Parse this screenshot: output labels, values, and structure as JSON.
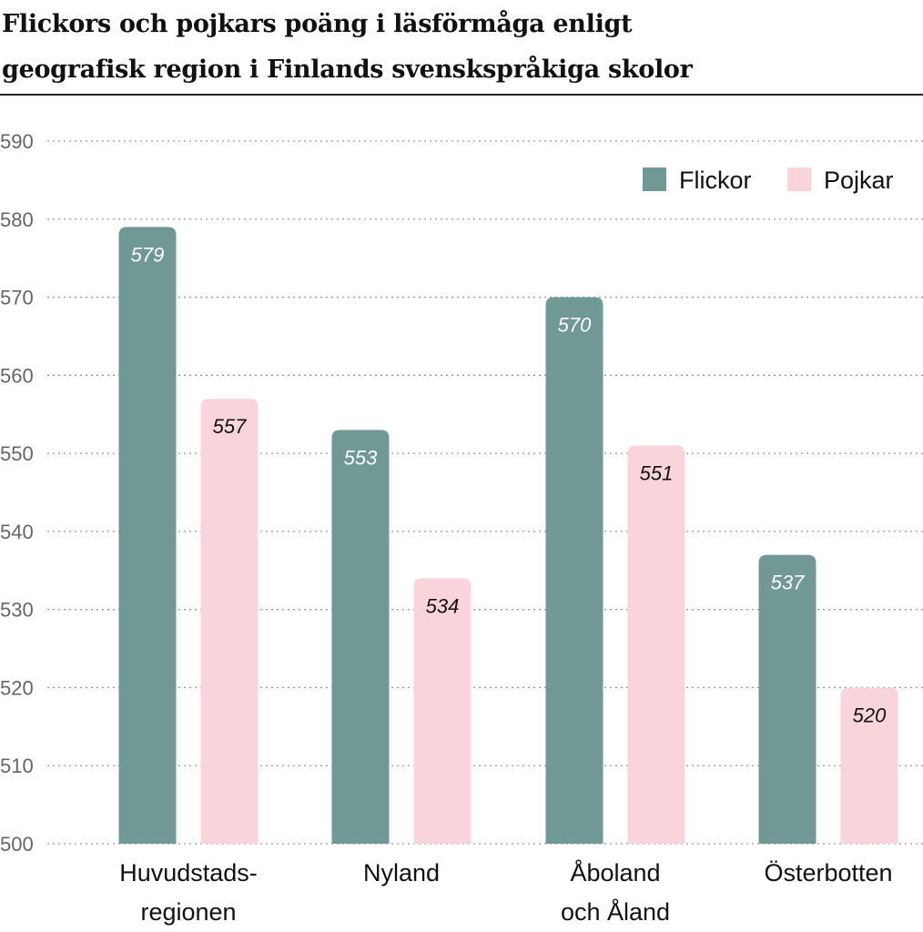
{
  "title_line1": "Flickors och pojkars poäng i läsförmåga enligt",
  "title_line2": "geografisk region i Finlands svenskspråkiga skolor",
  "colors": {
    "flickor": "#709996",
    "pojkar": "#f9d4da",
    "grid": "#999999",
    "axis_text": "#666666"
  },
  "chart_data": {
    "type": "bar",
    "title": "Flickors och pojkars poäng i läsförmåga enligt geografisk region i Finlands svenskspråkiga skolor",
    "categories": [
      [
        "Huvudstads-",
        "regionen"
      ],
      [
        "Nyland"
      ],
      [
        "Åboland",
        "och Åland"
      ],
      [
        "Österbotten"
      ]
    ],
    "series": [
      {
        "name": "Flickor",
        "values": [
          579,
          553,
          570,
          537
        ],
        "label_color": "#ffffff"
      },
      {
        "name": "Pojkar",
        "values": [
          557,
          534,
          551,
          520
        ],
        "label_color": "#111111"
      }
    ],
    "ylim": [
      500,
      590
    ],
    "yticks": [
      "500",
      "510",
      "520",
      "530",
      "540",
      "550",
      "560",
      "570",
      "580",
      "590"
    ],
    "grid": true,
    "legend": "top-right",
    "xlabel": "",
    "ylabel": ""
  }
}
